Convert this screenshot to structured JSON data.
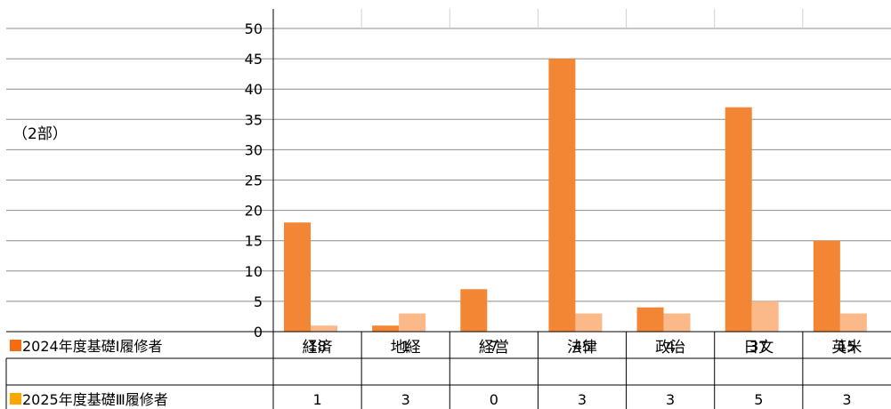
{
  "chart_data": {
    "type": "bar",
    "ylabel": "（2部）",
    "categories": [
      "経済",
      "地経",
      "経営",
      "法律",
      "政治",
      "日文",
      "英米"
    ],
    "series": [
      {
        "name": "2024年度基礎Ⅰ履修者",
        "values": [
          18,
          1,
          7,
          45,
          4,
          37,
          15
        ],
        "color": "#F38634"
      },
      {
        "name": "2025年度基礎Ⅲ履修者",
        "values": [
          1,
          3,
          0,
          3,
          3,
          5,
          3
        ],
        "color": "#FBB98A"
      }
    ],
    "legend_marker_colors": [
      "#F36C12",
      "#FFA500"
    ],
    "ylim": [
      0,
      50
    ],
    "yticks": [
      0,
      5,
      10,
      15,
      20,
      25,
      30,
      35,
      40,
      45,
      50
    ],
    "grid": true,
    "legend": "data-table"
  }
}
